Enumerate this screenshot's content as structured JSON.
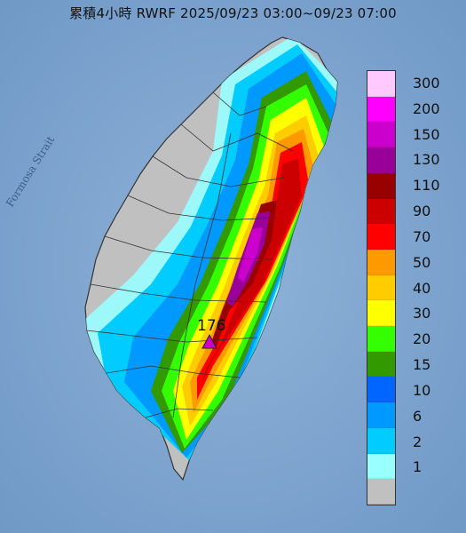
{
  "title": "累積4小時 RWRF 2025/09/23 03:00~09/23 07:00",
  "strait_label": "Formosa Strait",
  "peak": {
    "value": "176",
    "marker": "triangle-marker"
  },
  "legend": {
    "items": [
      {
        "label": "300",
        "color": "#ffc8ff"
      },
      {
        "label": "200",
        "color": "#ff00ff"
      },
      {
        "label": "150",
        "color": "#cc00cc"
      },
      {
        "label": "130",
        "color": "#990099"
      },
      {
        "label": "110",
        "color": "#990000"
      },
      {
        "label": "90",
        "color": "#cc0000"
      },
      {
        "label": "70",
        "color": "#ff0000"
      },
      {
        "label": "50",
        "color": "#ff9900"
      },
      {
        "label": "40",
        "color": "#ffcc00"
      },
      {
        "label": "30",
        "color": "#ffff00"
      },
      {
        "label": "20",
        "color": "#33ff00"
      },
      {
        "label": "15",
        "color": "#339900"
      },
      {
        "label": "10",
        "color": "#0066ff"
      },
      {
        "label": "6",
        "color": "#0099ff"
      },
      {
        "label": "2",
        "color": "#00ccff"
      },
      {
        "label": "1",
        "color": "#99ffff"
      },
      {
        "label": "",
        "color": "#c0c0c0"
      }
    ]
  },
  "colors": {
    "sea": "#7fa6d2",
    "land": "#c0c0c0",
    "boundary": "#333333"
  }
}
